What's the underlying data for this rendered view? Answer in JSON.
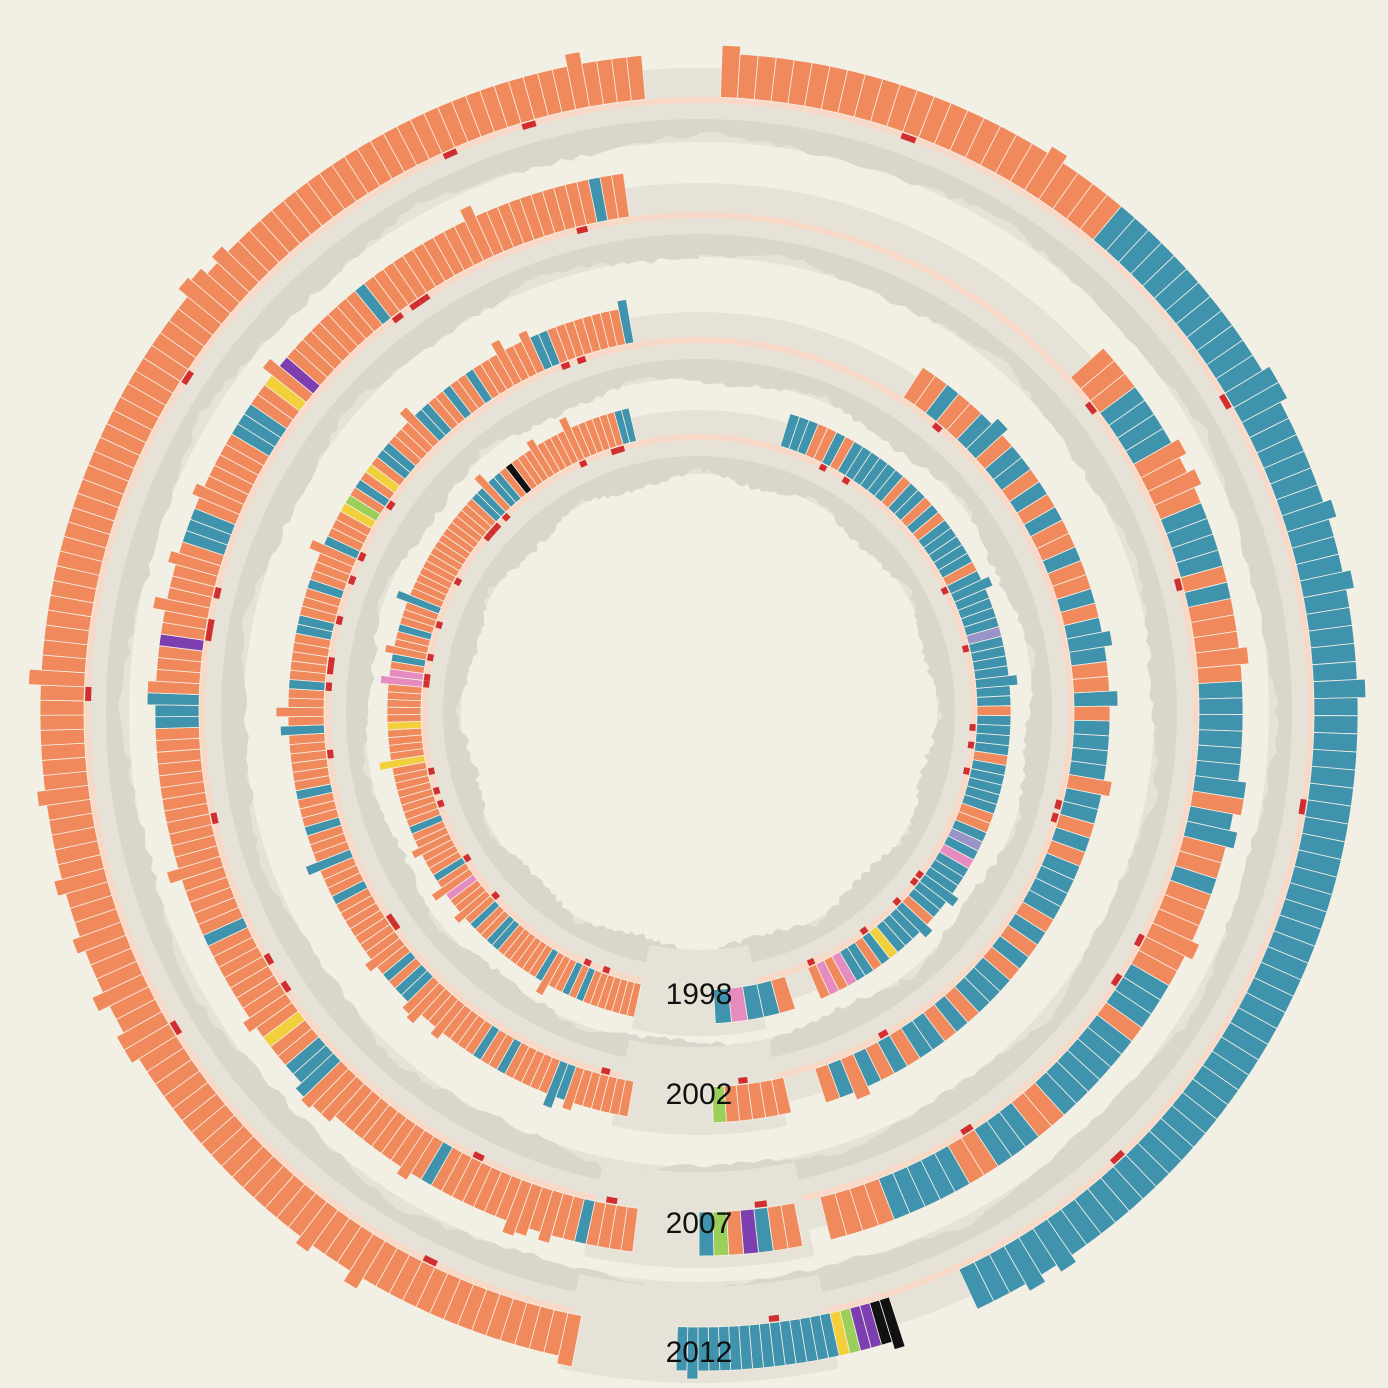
{
  "chart_data": {
    "type": "radial-bar",
    "title": "",
    "colors": {
      "background": "#f2efe5",
      "track": "#e6e2d8",
      "trend": "#d9d6cc",
      "band": "#f8d9c8",
      "marker": "#d12f2f",
      "separator": "#f3efe4"
    },
    "categories": [
      {
        "key": "o",
        "color": "#f08a5d"
      },
      {
        "key": "t",
        "color": "#3f93ad"
      },
      {
        "key": "k",
        "color": "#111111"
      },
      {
        "key": "y",
        "color": "#f2d03b"
      },
      {
        "key": "p",
        "color": "#7d3fb0"
      },
      {
        "key": "g",
        "color": "#9ccf5a"
      },
      {
        "key": "m",
        "color": "#e58bc0"
      },
      {
        "key": "v",
        "color": "#9a93c8"
      }
    ],
    "rings": [
      {
        "year": "1998",
        "left_arc": "ooooooototoootoooooottootoooomootooooootooooooooyooooyooooommotoootoootooooooooooooooottottokooooooooooooooott",
        "right_arc": "tttootottttttottototttttottttttvtttttttottttotttttootvtmttttttottttytottmomo",
        "bottom_arc": "ottmt",
        "tall_bars": [
          12,
          30,
          48,
          70,
          88,
          101
        ]
      },
      {
        "year": "2002",
        "left_arc": "ooooooottoooootootooooooooottotoooooooootoootoootoootooooootooootooooottoootooootoooygotoyottoooottootootooooooottoooooooot",
        "right_arc": "ootoottottototootoototttootottttottotottttotototttotottotototo",
        "bottom_arc": "ooooog",
        "tall_bars": [
          8,
          25,
          44,
          61,
          79,
          96,
          108
        ]
      },
      {
        "year": "2007",
        "left_arc": "ooootoooooooooooootooooooooooootttooyoooooooootooooooooooooooooootttoooopooooooootttoooooootttooyopooooooootoooooooooooooooooooootoo",
        "right_arc": "ooottttoooottttotoooootttttttottootooooootttottttttootttootttttoooo",
        "bottom_arc": "ootpogt",
        "tall_bars": [
          10,
          30,
          52,
          75,
          97,
          118
        ]
      },
      {
        "year": "2012",
        "left_arc": "ooooooooooooooooooooooooooooooooooooooooooooooooooooooooooooooooooooooooooooooooooooooooooooooooooooooooooooooooooooooooooooo",
        "right_arc": "oooooooooooooooooooooooottttttttttttttttttttttttttttttttttttttttttttttttttttttttttttttttttttttttt",
        "bottom_arc": "kkppgyttttttttttttttt",
        "tall_bars": [
          15,
          40,
          62,
          90,
          120,
          150
        ]
      }
    ]
  }
}
